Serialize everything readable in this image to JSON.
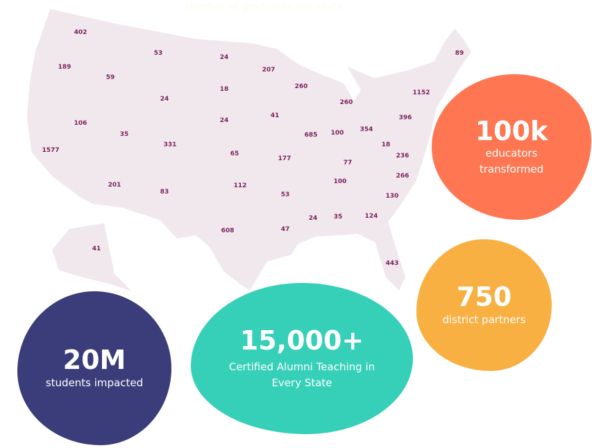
{
  "title": "Number of graduates per state",
  "colors": {
    "map": "#f1e8ee",
    "labels": "#7a1f5c",
    "orange": "#ff7752",
    "yellow": "#f9b042",
    "navy": "#3a3d7a",
    "teal": "#36cfb8"
  },
  "states": [
    "402",
    "189",
    "59",
    "53",
    "24",
    "207",
    "89",
    "18",
    "24",
    "260",
    "1152",
    "106",
    "35",
    "24",
    "41",
    "260",
    "396",
    "685",
    "100",
    "354",
    "331",
    "65",
    "18",
    "236",
    "1577",
    "177",
    "77",
    "201",
    "100",
    "266",
    "112",
    "83",
    "53",
    "130",
    "608",
    "47",
    "24",
    "35",
    "124",
    "443",
    "41"
  ],
  "stats": [
    {
      "value": "100k",
      "label": "educators transformed"
    },
    {
      "value": "750",
      "label": "district partners"
    },
    {
      "value": "20M",
      "label": "students impacted"
    },
    {
      "value": "15,000+",
      "label": "Certified Alumni Teaching in Every State"
    }
  ]
}
